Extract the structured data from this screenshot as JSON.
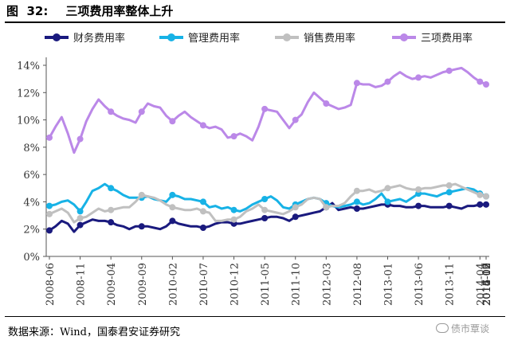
{
  "figure": {
    "title_prefix": "图  32:",
    "title_text": "三项费用率整体上升"
  },
  "source": "数据来源：Wind，国泰君安证券研究",
  "watermark": "债市覃谈",
  "chart_data": {
    "type": "line",
    "title": "",
    "xlabel": "",
    "ylabel": "",
    "ylim": [
      0,
      14
    ],
    "y_ticks": [
      "0%",
      "2%",
      "4%",
      "6%",
      "8%",
      "10%",
      "12%",
      "14%"
    ],
    "x_tick_labels": [
      "2008-06",
      "2008-11",
      "2009-04",
      "2009-09",
      "2010-02",
      "2010-07",
      "2010-12",
      "2011-05",
      "2011-10",
      "2012-03",
      "2012-08",
      "2013-01",
      "2013-06",
      "2013-11",
      "2014-04",
      "2014-09",
      "2015-02",
      "2015-07",
      "2015-12",
      "2016-05",
      "2016-10",
      "2017-03"
    ],
    "x_tick_every": 5,
    "x_start": "2008-06",
    "x_step_months": 1,
    "legend_position": "top",
    "grid": false,
    "series": [
      {
        "name": "财务费用率",
        "color": "#1a1a7e",
        "values": [
          1.9,
          2.2,
          2.6,
          2.4,
          1.8,
          2.3,
          2.5,
          2.7,
          2.6,
          2.6,
          2.5,
          2.3,
          2.2,
          2.0,
          2.2,
          2.2,
          2.2,
          2.1,
          2.0,
          2.2,
          2.6,
          2.4,
          2.3,
          2.2,
          2.2,
          2.1,
          2.2,
          2.4,
          2.5,
          2.5,
          2.4,
          2.4,
          2.5,
          2.6,
          2.7,
          2.8,
          2.9,
          2.9,
          2.8,
          2.6,
          2.9,
          3.0,
          3.1,
          3.2,
          3.3,
          3.6,
          3.9,
          3.4,
          3.5,
          3.6,
          3.5,
          3.5,
          3.6,
          3.7,
          3.8,
          3.8,
          3.7,
          3.7,
          3.6,
          3.6,
          3.7,
          3.7,
          3.6,
          3.6,
          3.6,
          3.7,
          3.6,
          3.5,
          3.7,
          3.7,
          3.8,
          3.8
        ]
      },
      {
        "name": "管理费用率",
        "color": "#17b2e6",
        "values": [
          3.7,
          3.8,
          4.0,
          4.1,
          3.8,
          3.3,
          4.0,
          4.8,
          5.0,
          5.3,
          5.0,
          4.8,
          4.5,
          4.3,
          4.3,
          4.3,
          4.4,
          4.2,
          4.1,
          4.0,
          4.5,
          4.4,
          4.2,
          4.2,
          4.1,
          4.0,
          3.6,
          3.7,
          3.5,
          3.6,
          3.4,
          3.3,
          3.5,
          3.8,
          4.0,
          4.2,
          4.4,
          4.1,
          3.6,
          3.5,
          3.8,
          4.0,
          4.2,
          4.3,
          4.2,
          3.9,
          3.7,
          3.6,
          3.7,
          3.8,
          4.0,
          3.8,
          3.9,
          4.2,
          4.6,
          4.0,
          4.1,
          4.2,
          4.0,
          4.3,
          4.6,
          4.6,
          4.5,
          4.4,
          4.6,
          4.7,
          4.8,
          4.9,
          5.0,
          4.9,
          4.6,
          4.4
        ]
      },
      {
        "name": "销售费用率",
        "color": "#c0c0c0",
        "values": [
          3.1,
          3.3,
          3.5,
          3.2,
          2.5,
          2.8,
          2.9,
          3.2,
          3.5,
          3.3,
          3.4,
          3.5,
          3.6,
          3.6,
          4.0,
          4.5,
          4.4,
          4.3,
          4.1,
          3.8,
          3.6,
          3.5,
          3.4,
          3.4,
          3.5,
          3.3,
          3.2,
          2.6,
          2.6,
          2.7,
          2.7,
          2.9,
          3.3,
          3.5,
          3.8,
          3.4,
          3.3,
          3.2,
          3.1,
          3.3,
          3.6,
          3.8,
          4.2,
          4.3,
          4.2,
          3.6,
          3.7,
          3.7,
          3.9,
          4.4,
          4.8,
          4.8,
          4.9,
          4.7,
          4.8,
          5.0,
          5.1,
          5.2,
          5.0,
          4.9,
          4.9,
          5.0,
          5.0,
          5.1,
          5.2,
          5.2,
          5.3,
          5.1,
          4.9,
          4.7,
          4.5,
          4.4
        ]
      },
      {
        "name": "三项费用率",
        "color": "#bb88e8",
        "values": [
          8.7,
          9.5,
          10.2,
          9.0,
          7.6,
          8.6,
          9.9,
          10.8,
          11.5,
          11.0,
          10.6,
          10.3,
          10.1,
          10.0,
          9.8,
          10.6,
          11.2,
          11.0,
          10.9,
          10.3,
          9.9,
          10.3,
          10.6,
          10.2,
          9.9,
          9.6,
          9.4,
          9.5,
          9.3,
          8.7,
          8.8,
          9.0,
          8.8,
          8.5,
          9.5,
          10.8,
          10.7,
          10.6,
          10.0,
          9.4,
          10.0,
          10.4,
          11.3,
          12.0,
          11.6,
          11.2,
          11.0,
          10.8,
          10.9,
          11.1,
          12.7,
          12.6,
          12.6,
          12.4,
          12.5,
          12.8,
          13.2,
          13.5,
          13.2,
          13.0,
          13.1,
          13.2,
          13.1,
          13.3,
          13.5,
          13.6,
          13.7,
          13.8,
          13.5,
          13.1,
          12.8,
          12.6
        ]
      }
    ]
  }
}
